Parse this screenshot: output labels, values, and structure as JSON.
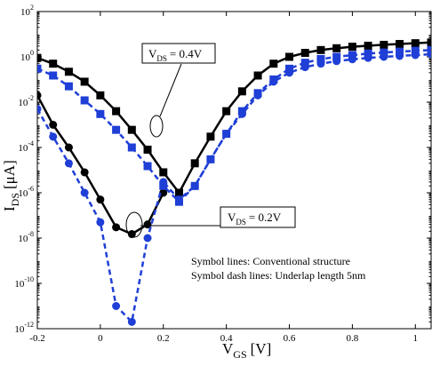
{
  "chart_data": {
    "type": "line",
    "x_axis": {
      "symbol": "V",
      "subscript": "GS",
      "unit": "[V]",
      "lim": [
        -0.2,
        1.05
      ],
      "ticks": [
        -0.2,
        0,
        0.2,
        0.4,
        0.6,
        0.8,
        1
      ],
      "tick_labels": [
        "-0.2",
        "0",
        "0.2",
        "0.4",
        "0.6",
        "0.8",
        "1"
      ]
    },
    "y_axis": {
      "symbol": "I",
      "subscript": "DS",
      "unit": "[μA]",
      "scale": "log",
      "lim": [
        1e-12,
        100
      ],
      "ticks": [
        1e-12,
        1e-10,
        1e-08,
        1e-06,
        0.0001,
        0.01,
        1,
        100
      ],
      "tick_labels": [
        {
          "base": "10",
          "exp": "-12"
        },
        {
          "base": "10",
          "exp": "-10"
        },
        {
          "base": "10",
          "exp": "-8"
        },
        {
          "base": "10",
          "exp": "-6"
        },
        {
          "base": "10",
          "exp": "-4"
        },
        {
          "base": "10",
          "exp": "-2"
        },
        {
          "base": "10",
          "exp": "0"
        },
        {
          "base": "10",
          "exp": "2"
        }
      ]
    },
    "annotations": [
      {
        "symbol": "V",
        "subscript": "DS",
        "value": "= 0.4V"
      },
      {
        "symbol": "V",
        "subscript": "DS",
        "value": "= 0.2V"
      }
    ],
    "notes": [
      "Symbol lines: Conventional structure",
      "Symbol dash lines: Underlap length 5nm"
    ],
    "series": [
      {
        "key": "conv_04",
        "color": "#000000",
        "dash": false,
        "marker": "square",
        "x": [
          -0.2,
          -0.15,
          -0.1,
          -0.05,
          0,
          0.05,
          0.1,
          0.15,
          0.2,
          0.25,
          0.3,
          0.35,
          0.4,
          0.45,
          0.5,
          0.55,
          0.6,
          0.65,
          0.7,
          0.75,
          0.8,
          0.85,
          0.9,
          0.95,
          1,
          1.05
        ],
        "y": [
          0.9,
          0.5,
          0.22,
          0.08,
          0.02,
          0.004,
          0.0006,
          8e-05,
          8e-06,
          1e-06,
          2e-05,
          0.0003,
          0.004,
          0.03,
          0.15,
          0.5,
          1.0,
          1.5,
          2.0,
          2.4,
          2.8,
          3.1,
          3.4,
          3.7,
          4.0,
          4.3
        ]
      },
      {
        "key": "conv_02",
        "color": "#000000",
        "dash": false,
        "marker": "circle",
        "x": [
          -0.2,
          -0.15,
          -0.1,
          -0.05,
          0,
          0.05,
          0.1,
          0.15,
          0.2
        ],
        "y": [
          0.02,
          0.001,
          0.0001,
          8e-06,
          5e-07,
          3e-08,
          1.5e-08,
          4e-08,
          1e-06
        ]
      },
      {
        "key": "underlap_04",
        "color": "#1f3fd6",
        "dash": true,
        "marker": "square",
        "x": [
          -0.2,
          -0.15,
          -0.1,
          -0.05,
          0,
          0.05,
          0.1,
          0.15,
          0.2,
          0.25,
          0.3,
          0.35,
          0.4,
          0.45,
          0.5,
          0.55,
          0.6,
          0.65,
          0.7,
          0.75,
          0.8,
          0.85,
          0.9,
          0.95,
          1,
          1.05
        ],
        "y": [
          0.3,
          0.15,
          0.05,
          0.012,
          0.003,
          0.0006,
          0.0001,
          1.5e-05,
          2e-06,
          4e-07,
          2e-06,
          3e-05,
          0.0004,
          0.004,
          0.025,
          0.1,
          0.3,
          0.55,
          0.8,
          1.0,
          1.2,
          1.4,
          1.55,
          1.7,
          1.85,
          2.0
        ]
      },
      {
        "key": "underlap_02",
        "color": "#1f3fd6",
        "dash": true,
        "marker": "circle",
        "x": [
          -0.2,
          -0.15,
          -0.1,
          -0.05,
          0,
          0.05,
          0.1,
          0.15,
          0.2,
          0.25,
          0.3,
          0.35,
          0.4,
          0.45,
          0.5,
          0.55,
          0.6,
          0.65,
          0.7,
          0.75,
          0.8,
          0.85,
          0.9,
          0.95,
          1,
          1.05
        ],
        "y": [
          0.005,
          0.0003,
          2e-05,
          1e-06,
          5e-08,
          1e-11,
          2e-12,
          1e-08,
          3e-06,
          5e-07,
          2e-06,
          3e-05,
          0.0004,
          0.003,
          0.02,
          0.08,
          0.2,
          0.35,
          0.5,
          0.65,
          0.78,
          0.9,
          1.0,
          1.1,
          1.2,
          1.3
        ]
      }
    ]
  }
}
